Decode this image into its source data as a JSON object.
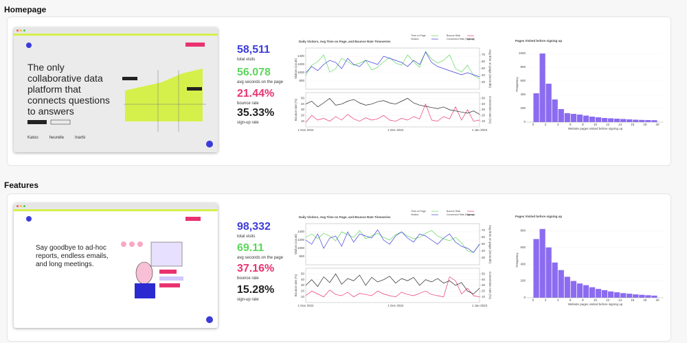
{
  "sections": [
    {
      "title": "Homepage",
      "site": {
        "headline": [
          "The only",
          "collaborative data",
          "platform that",
          "connects questions",
          "to answers"
        ],
        "logos": [
          "Katoo",
          "heurelle",
          "Inarbi"
        ]
      },
      "stats": [
        {
          "value": "58,511",
          "label": "total visits"
        },
        {
          "value": "56.078",
          "label": "avg seconds on the page"
        },
        {
          "value": "21.44%",
          "label": "bounce rate"
        },
        {
          "value": "35.33%",
          "label": "sign-up rate"
        }
      ]
    },
    {
      "title": "Features",
      "site": {
        "headline": [
          "Say goodbye to ad-hoc",
          "reports, endless emails,",
          "and long meetings."
        ]
      },
      "stats": [
        {
          "value": "98,332",
          "label": "total visits"
        },
        {
          "value": "69.11",
          "label": "avg seconds on the page"
        },
        {
          "value": "37.16%",
          "label": "bounce rate"
        },
        {
          "value": "15.28%",
          "label": "sign-up rate"
        }
      ]
    }
  ],
  "chart_data": [
    {
      "type": "line",
      "title": "Daily Visitors, Avg Time on Page, and Bounce Rate Timeseries",
      "ylabel": "Visitors (count)",
      "y2label": "Avg time on page (seconds)",
      "ylim": [
        600,
        1600
      ],
      "yticks": [
        800,
        1000,
        1200,
        1400
      ],
      "y2lim": [
        20,
        80
      ],
      "y2ticks": [
        30,
        40,
        50,
        60,
        70
      ],
      "series": [
        {
          "name": "Time on Page",
          "color": "#5cd65c",
          "axis": "y2",
          "values": [
            40,
            55,
            60,
            70,
            45,
            50,
            65,
            60,
            55,
            58,
            62,
            48,
            52,
            60,
            66,
            58,
            55,
            70,
            60,
            52,
            75,
            64,
            58,
            62,
            70,
            50,
            45,
            55,
            40,
            35
          ]
        },
        {
          "name": "Visitors",
          "color": "#3b3bdc",
          "values": [
            1000,
            1150,
            1050,
            1200,
            1300,
            1250,
            1100,
            1350,
            1200,
            1150,
            1300,
            1250,
            1200,
            1400,
            1350,
            1300,
            1250,
            1150,
            1300,
            1200,
            1500,
            1250,
            1150,
            1100,
            1050,
            1000,
            950,
            1000,
            950,
            900
          ]
        }
      ]
    },
    {
      "type": "line",
      "ylabel": "Bounce rate (%)",
      "y2label": "Conversion rate (%)",
      "categories": [
        "1 Nov 2022",
        null,
        null,
        null,
        null,
        null,
        null,
        null,
        null,
        null,
        null,
        null,
        null,
        null,
        null,
        "1 Dec 2022",
        null,
        null,
        null,
        null,
        null,
        null,
        null,
        null,
        null,
        null,
        null,
        null,
        null,
        "1 Jan 2023"
      ],
      "ylim": [
        0,
        60
      ],
      "yticks": [
        10,
        20,
        30,
        40,
        50
      ],
      "y2lim": [
        0,
        60
      ],
      "y2ticks": [
        10,
        20,
        30,
        40,
        50
      ],
      "series": [
        {
          "name": "Bounce Rate",
          "color": "#e8336f",
          "values": [
            8,
            20,
            12,
            15,
            10,
            18,
            12,
            22,
            14,
            10,
            16,
            12,
            14,
            20,
            12,
            10,
            15,
            12,
            18,
            14,
            40,
            12,
            10,
            18,
            14,
            35,
            12,
            30,
            10,
            12
          ]
        },
        {
          "name": "Conversion Rate (Sign-up)",
          "color": "#222222",
          "axis": "y2",
          "values": [
            40,
            45,
            35,
            42,
            50,
            38,
            40,
            45,
            48,
            42,
            38,
            40,
            44,
            46,
            42,
            40,
            45,
            50,
            42,
            38,
            36,
            34,
            32,
            35,
            30,
            28,
            26,
            24,
            28,
            22
          ]
        }
      ]
    },
    {
      "type": "histogram",
      "title": "Pages Visited before signing up",
      "xlabel": "Website pages visited before signing up",
      "ylabel": "Frequency",
      "color": "#8b6cf0",
      "bins": [
        0,
        1,
        2,
        3,
        4,
        5,
        6,
        7,
        8,
        9,
        10,
        11,
        12,
        13,
        14,
        15,
        16,
        17,
        18,
        19,
        20
      ],
      "values": [
        420,
        1000,
        560,
        330,
        190,
        130,
        120,
        110,
        95,
        80,
        70,
        60,
        55,
        50,
        45,
        40,
        35,
        32,
        30,
        28
      ],
      "xlim": [
        -1,
        21
      ],
      "xticks": [
        0,
        2,
        4,
        6,
        8,
        10,
        12,
        14,
        16,
        18,
        20
      ],
      "ylim": [
        0,
        1100
      ],
      "yticks": [
        0,
        200,
        400,
        600,
        800,
        1000
      ]
    },
    {
      "type": "line",
      "title": "Daily Visitors, Avg Time on Page, and Bounce Rate Timeseries",
      "ylabel": "Visitors (count)",
      "y2label": "Avg time on page (seconds)",
      "ylim": [
        600,
        1600
      ],
      "yticks": [
        800,
        1000,
        1200,
        1400
      ],
      "y2lim": [
        20,
        80
      ],
      "y2ticks": [
        30,
        40,
        50,
        60,
        70
      ],
      "series": [
        {
          "name": "Time on Page",
          "color": "#5cd65c",
          "axis": "y2",
          "values": [
            60,
            65,
            58,
            66,
            62,
            55,
            68,
            64,
            60,
            70,
            58,
            62,
            66,
            60,
            56,
            64,
            68,
            62,
            58,
            60,
            66,
            70,
            62,
            58,
            55,
            60,
            52,
            40,
            38,
            50
          ]
        },
        {
          "name": "Visitors",
          "color": "#3b3bdc",
          "values": [
            1200,
            1100,
            1350,
            1000,
            1250,
            1300,
            1050,
            1400,
            1150,
            1350,
            1300,
            1250,
            1450,
            1200,
            1100,
            1300,
            1400,
            1250,
            1150,
            1350,
            1300,
            1200,
            1100,
            1250,
            1350,
            1150,
            1050,
            1000,
            900,
            1100
          ]
        }
      ]
    },
    {
      "type": "line",
      "ylabel": "Bounce rate (%)",
      "y2label": "Conversion rate (%)",
      "categories": [
        "1 Nov 2022",
        null,
        null,
        null,
        null,
        null,
        null,
        null,
        null,
        null,
        null,
        null,
        null,
        null,
        null,
        "1 Dec 2022",
        null,
        null,
        null,
        null,
        null,
        null,
        null,
        null,
        null,
        null,
        null,
        null,
        null,
        "1 Jan 2023"
      ],
      "ylim": [
        0,
        60
      ],
      "yticks": [
        10,
        20,
        30,
        40,
        50
      ],
      "y2lim": [
        0,
        60
      ],
      "y2ticks": [
        10,
        20,
        30,
        40,
        50
      ],
      "series": [
        {
          "name": "Bounce Rate",
          "color": "#e8336f",
          "values": [
            12,
            20,
            15,
            10,
            22,
            14,
            12,
            18,
            10,
            16,
            14,
            12,
            20,
            15,
            12,
            10,
            18,
            14,
            12,
            16,
            20,
            14,
            12,
            10,
            45,
            38,
            15,
            25,
            12,
            10
          ]
        },
        {
          "name": "Conversion Rate (Sign-up)",
          "color": "#222222",
          "axis": "y2",
          "values": [
            30,
            40,
            28,
            45,
            35,
            50,
            32,
            42,
            38,
            48,
            30,
            44,
            36,
            40,
            46,
            34,
            42,
            38,
            44,
            30,
            40,
            36,
            42,
            34,
            38,
            30,
            35,
            20,
            15,
            25
          ]
        }
      ]
    },
    {
      "type": "histogram",
      "title": "Pages Visited before signing up",
      "xlabel": "Website pages visited before signing up",
      "ylabel": "Frequency",
      "color": "#8b6cf0",
      "bins": [
        0,
        1,
        2,
        3,
        4,
        5,
        6,
        7,
        8,
        9,
        10,
        11,
        12,
        13,
        14,
        15,
        16,
        17,
        18,
        19,
        20
      ],
      "values": [
        700,
        820,
        600,
        420,
        330,
        250,
        200,
        170,
        150,
        125,
        105,
        90,
        75,
        65,
        55,
        48,
        40,
        35,
        30,
        25
      ],
      "xlim": [
        -1,
        21
      ],
      "xticks": [
        0,
        2,
        4,
        6,
        8,
        10,
        12,
        14,
        16,
        18,
        20
      ],
      "ylim": [
        0,
        900
      ],
      "yticks": [
        0,
        200,
        400,
        600,
        800
      ]
    }
  ]
}
